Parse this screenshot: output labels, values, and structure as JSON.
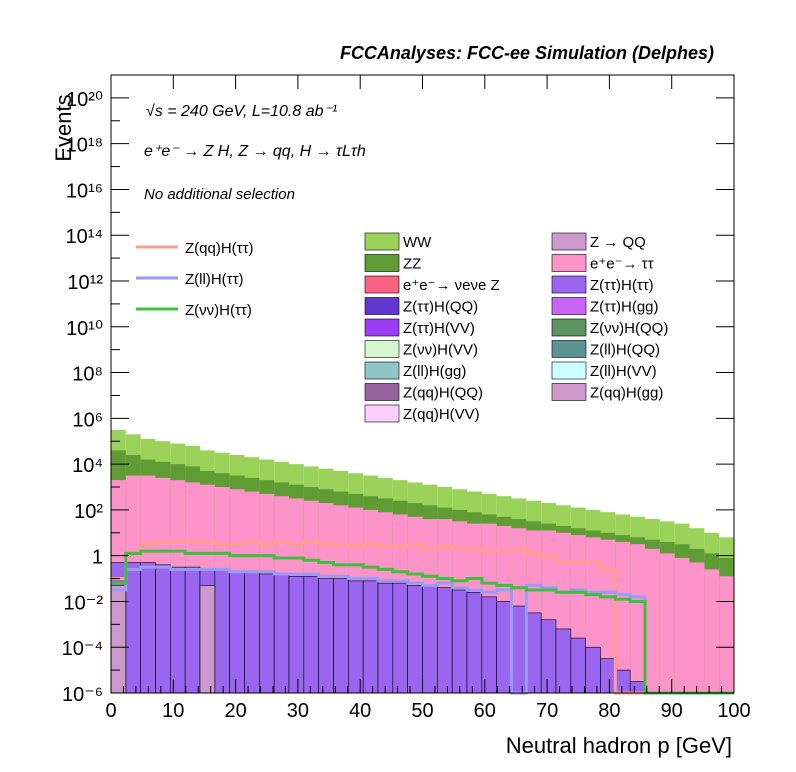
{
  "chart_data": {
    "type": "bar",
    "title": "FCCAnalyses: FCC-ee Simulation (Delphes)",
    "xlabel": "Neutral hadron p [GeV]",
    "ylabel": "Events",
    "xlim": [
      0,
      100
    ],
    "ylim_log10": [
      -6,
      21
    ],
    "log_y": true,
    "x_ticks": [
      "0",
      "10",
      "20",
      "30",
      "40",
      "50",
      "60",
      "70",
      "80",
      "90",
      "100"
    ],
    "y_tick_exponents": [
      -6,
      -4,
      -2,
      0,
      2,
      4,
      6,
      8,
      10,
      12,
      14,
      16,
      18,
      20
    ],
    "y_tick_labels": [
      "10⁻⁶",
      "10⁻⁴",
      "10⁻²",
      "1",
      "10²",
      "10⁴",
      "10⁶",
      "10⁸",
      "10¹⁰",
      "10¹²",
      "10¹⁴",
      "10¹⁶",
      "10¹⁸",
      "10²⁰"
    ],
    "annotations": [
      "√s = 240 GeV, L=10.8 ab⁻¹",
      "e⁺e⁻ → Z H, Z → qq, H → τLτh",
      "No additional selection"
    ],
    "signal_legend": [
      {
        "label": "Z(qq)H(ττ)",
        "color": "#ff9e8a"
      },
      {
        "label": "Z(ll)H(ττ)",
        "color": "#9b9bf5"
      },
      {
        "label": "Z(νν)H(ττ)",
        "color": "#3fbf3f"
      }
    ],
    "background_legend": [
      {
        "label": "WW",
        "color": "#9bd35a"
      },
      {
        "label": "ZZ",
        "color": "#5f9c34"
      },
      {
        "label": "e⁺e⁻→ νeνe Z",
        "color": "#fb6385"
      },
      {
        "label": "Z(ττ)H(QQ)",
        "color": "#6037cf"
      },
      {
        "label": "Z(ττ)H(VV)",
        "color": "#9b3cf5"
      },
      {
        "label": "Z(νν)H(VV)",
        "color": "#d6f7d0"
      },
      {
        "label": "Z(ll)H(gg)",
        "color": "#8fc5c5"
      },
      {
        "label": "Z(qq)H(QQ)",
        "color": "#96639c"
      },
      {
        "label": "Z(qq)H(VV)",
        "color": "#fccefc"
      },
      {
        "label": "Z → QQ",
        "color": "#cc99cc"
      },
      {
        "label": "e⁺e⁻→ ττ",
        "color": "#fc94c9"
      },
      {
        "label": "Z(ττ)H(ττ)",
        "color": "#9a66f0"
      },
      {
        "label": "Z(ττ)H(gg)",
        "color": "#c766f5"
      },
      {
        "label": "Z(νν)H(QQ)",
        "color": "#5c9461"
      },
      {
        "label": "Z(ll)H(QQ)",
        "color": "#5c9494"
      },
      {
        "label": "Z(ll)H(VV)",
        "color": "#ccffff"
      },
      {
        "label": "Z(qq)H(gg)",
        "color": "#cf99cc"
      }
    ],
    "stack_total_log10": [
      5.5,
      5.3,
      5.1,
      5.0,
      4.9,
      4.8,
      4.6,
      4.5,
      4.4,
      4.3,
      4.2,
      4.1,
      4.0,
      3.9,
      3.8,
      3.7,
      3.6,
      3.5,
      3.4,
      3.3,
      3.2,
      3.1,
      3.0,
      2.9,
      2.8,
      2.7,
      2.6,
      2.5,
      2.4,
      2.3,
      2.2,
      2.1,
      2.0,
      1.9,
      1.8,
      1.7,
      1.6,
      1.5,
      1.4,
      1.2,
      1.0,
      0.8
    ],
    "ee_tautau_log10": [
      3.3,
      3.5,
      3.5,
      3.4,
      3.3,
      3.2,
      3.1,
      3.0,
      2.9,
      2.8,
      2.7,
      2.6,
      2.5,
      2.4,
      2.3,
      2.2,
      2.1,
      2.0,
      1.9,
      1.8,
      1.7,
      1.6,
      1.6,
      1.5,
      1.4,
      1.4,
      1.3,
      1.2,
      1.1,
      1.1,
      1.0,
      0.9,
      0.8,
      0.7,
      0.6,
      0.5,
      0.3,
      0.1,
      -0.1,
      -0.3,
      -0.6,
      -0.9
    ],
    "ztautau_htautau_log10": [
      -0.3,
      -0.3,
      -0.3,
      -0.4,
      -0.5,
      -0.5,
      -0.6,
      -0.6,
      -0.7,
      -0.7,
      -0.8,
      -0.8,
      -0.9,
      -0.9,
      -1.0,
      -1.0,
      -1.1,
      -1.1,
      -1.2,
      -1.2,
      -1.3,
      -1.3,
      -1.4,
      -1.5,
      -1.6,
      -1.8,
      -2.0,
      -2.2,
      -2.5,
      -2.8,
      -3.2,
      -3.6,
      -4.0,
      -4.5,
      -5.0,
      -5.5,
      -6,
      -6,
      -6,
      -6,
      -6,
      -6
    ],
    "signal_zqq_htautau_log10": [
      -1.0,
      0.1,
      0.5,
      0.6,
      0.6,
      0.6,
      0.6,
      0.5,
      0.5,
      0.6,
      0.5,
      0.6,
      0.5,
      0.6,
      0.5,
      0.5,
      0.4,
      0.5,
      0.4,
      0.4,
      0.5,
      0.3,
      0.4,
      0.3,
      0.3,
      0.2,
      0.2,
      0.3,
      0.1,
      0.0,
      -0.3,
      -0.3,
      -0.3,
      -0.6,
      -6,
      -6,
      -6,
      -6,
      -6,
      -6,
      -6,
      -6
    ],
    "signal_zll_htautau_log10": [
      -1.5,
      -0.6,
      -0.5,
      -0.5,
      -0.6,
      -0.6,
      -0.6,
      -0.6,
      -0.7,
      -0.7,
      -0.7,
      -0.8,
      -0.8,
      -0.8,
      -0.9,
      -0.9,
      -1.0,
      -1.0,
      -1.1,
      -1.1,
      -1.2,
      -1.3,
      -1.2,
      -1.4,
      -1.5,
      -1.6,
      -1.5,
      -6,
      -1.3,
      -1.4,
      -1.6,
      -1.5,
      -1.6,
      -1.6,
      -1.7,
      -1.8,
      -6,
      -6,
      -6,
      -6,
      -6,
      -6
    ],
    "signal_znunu_htautau_log10": [
      -1.2,
      0.1,
      0.2,
      0.2,
      0.2,
      0.1,
      0.1,
      0.1,
      0.0,
      0.0,
      0.0,
      -0.1,
      -0.1,
      -0.2,
      -0.3,
      -0.4,
      -0.4,
      -0.5,
      -0.6,
      -0.7,
      -0.8,
      -0.9,
      -1.0,
      -1.1,
      -1.0,
      -1.2,
      -1.3,
      -1.4,
      -1.5,
      -1.5,
      -1.6,
      -1.6,
      -1.7,
      -1.8,
      -1.9,
      -2.0,
      -6,
      -6,
      -6,
      -6,
      -6,
      -6
    ]
  }
}
